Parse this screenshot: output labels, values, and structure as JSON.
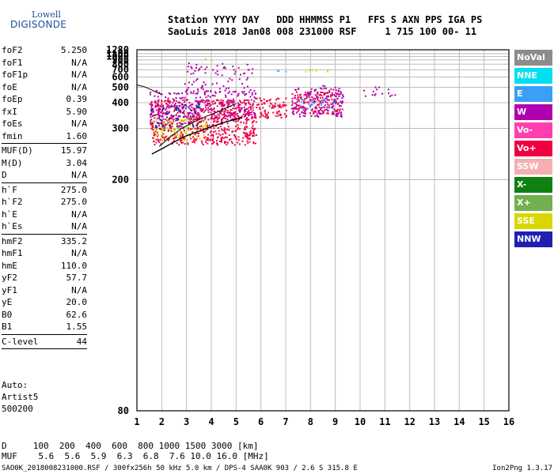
{
  "logo": {
    "line1": "Lowell",
    "line2": "DIGISONDE"
  },
  "header": {
    "labels": "Station YYYY DAY   DDD HHMMSS P1   FFS S AXN PPS IGA PS",
    "values": "SaoLuis 2018 Jan08 008 231000 RSF     1 715 100 00- 11"
  },
  "params": [
    {
      "key": "foF2",
      "value": "5.250"
    },
    {
      "key": "foF1",
      "value": "N/A"
    },
    {
      "key": "foF1p",
      "value": "N/A"
    },
    {
      "key": "foE",
      "value": "N/A"
    },
    {
      "key": "foEp",
      "value": "0.39"
    },
    {
      "key": "fxI",
      "value": "5.90"
    },
    {
      "key": "foEs",
      "value": "N/A"
    },
    {
      "key": "fmin",
      "value": "1.60",
      "sep_after": true
    },
    {
      "key": "MUF(D)",
      "value": "15.97"
    },
    {
      "key": "M(D)",
      "value": "3.04"
    },
    {
      "key": "D",
      "value": "N/A",
      "sep_after": true
    },
    {
      "key": "h`F",
      "value": "275.0"
    },
    {
      "key": "h`F2",
      "value": "275.0"
    },
    {
      "key": "h`E",
      "value": "N/A"
    },
    {
      "key": "h`Es",
      "value": "N/A",
      "sep_after": true
    },
    {
      "key": "hmF2",
      "value": "335.2"
    },
    {
      "key": "hmF1",
      "value": "N/A"
    },
    {
      "key": "hmE",
      "value": "110.0"
    },
    {
      "key": "yF2",
      "value": "57.7"
    },
    {
      "key": "yF1",
      "value": "N/A"
    },
    {
      "key": "yE",
      "value": "20.0"
    },
    {
      "key": "B0",
      "value": "62.6"
    },
    {
      "key": "B1",
      "value": "1.55",
      "sep_after": true
    },
    {
      "key": "C-level",
      "value": "44",
      "sep_after": true
    }
  ],
  "auto": {
    "line1": "Auto:",
    "line2": "Artist5",
    "line3": "500200"
  },
  "legend": [
    {
      "label": "NoVal",
      "color": "#8c8c8c"
    },
    {
      "label": "NNE",
      "color": "#00e0f0"
    },
    {
      "label": "E",
      "color": "#3aa0f5"
    },
    {
      "label": "W",
      "color": "#b000b0"
    },
    {
      "label": "Vo-",
      "color": "#ff3fb0"
    },
    {
      "label": "Vo+",
      "color": "#f00040"
    },
    {
      "label": "SSW",
      "color": "#f4b0b0"
    },
    {
      "label": "X-",
      "color": "#108010"
    },
    {
      "label": "X+",
      "color": "#70b050"
    },
    {
      "label": "SSE",
      "color": "#d8d800"
    },
    {
      "label": "NNW",
      "color": "#2020b0"
    }
  ],
  "d_table": {
    "row1": "D     100  200  400  600  800 1000 1500 3000 [km]",
    "row2": "MUF    5.6  5.6  5.9  6.3  6.8  7.6 10.0 16.0 [MHz]"
  },
  "footer": {
    "left": "SAO0K_2018008231000.RSF / 300fx256h 50 kHz 5.0 km / DPS-4 SAA0K 903 / 2.6 S 315.8 E",
    "right": "Ion2Png 1.3.17"
  },
  "chart_data": {
    "type": "scatter",
    "xlim": [
      1,
      16
    ],
    "ylim": [
      80,
      1280
    ],
    "x_ticks": [
      "1",
      "2",
      "3",
      "4",
      "5",
      "6",
      "7",
      "8",
      "9",
      "10",
      "11",
      "12",
      "13",
      "14",
      "15",
      "16"
    ],
    "y_ticks": [
      "80",
      "200",
      "300",
      "400",
      "500",
      "600",
      "700",
      "800",
      "900",
      "1000",
      "1100",
      "1280"
    ],
    "y_scale": "reciprocal",
    "grid": true,
    "clusters": [
      {
        "name": "Vo+",
        "x": [
          1.5,
          5.8
        ],
        "y": [
          260,
          420
        ],
        "density": 0.9
      },
      {
        "name": "Vo+",
        "x": [
          5.8,
          7.0
        ],
        "y": [
          330,
          430
        ],
        "density": 0.8
      },
      {
        "name": "Vo+",
        "x": [
          7.2,
          9.2
        ],
        "y": [
          350,
          470
        ],
        "density": 0.8
      },
      {
        "name": "W",
        "x": [
          1.5,
          5.8
        ],
        "y": [
          330,
          480
        ],
        "density": 0.5
      },
      {
        "name": "W",
        "x": [
          7.2,
          9.3
        ],
        "y": [
          340,
          520
        ],
        "density": 0.6
      },
      {
        "name": "NNW",
        "x": [
          1.5,
          3.5
        ],
        "y": [
          300,
          400
        ],
        "density": 0.4
      },
      {
        "name": "SSE",
        "x": [
          1.6,
          3.8
        ],
        "y": [
          270,
          330
        ],
        "density": 0.5
      },
      {
        "name": "W",
        "x": [
          2.9,
          5.7
        ],
        "y": [
          450,
          850
        ],
        "density": 0.25
      },
      {
        "name": "SSE",
        "x": [
          3.6,
          4.4
        ],
        "y": [
          880,
          970
        ],
        "density": 0.15
      },
      {
        "name": "NNE",
        "x": [
          6.6,
          7.0
        ],
        "y": [
          660,
          710
        ],
        "density": 0.6
      },
      {
        "name": "SSE",
        "x": [
          7.7,
          9.3
        ],
        "y": [
          680,
          710
        ],
        "density": 0.5
      },
      {
        "name": "W",
        "x": [
          9.8,
          11.8
        ],
        "y": [
          440,
          510
        ],
        "density": 0.2
      },
      {
        "name": "E",
        "x": [
          7.5,
          9.0
        ],
        "y": [
          370,
          430
        ],
        "density": 0.3
      }
    ],
    "trace": {
      "x": [
        1.6,
        2.0,
        2.5,
        3.0,
        3.5,
        4.0,
        4.5,
        5.0,
        5.25
      ],
      "y": [
        240,
        250,
        265,
        280,
        292,
        305,
        318,
        330,
        335
      ]
    },
    "trace2": {
      "x": [
        1.9,
        2.3,
        2.8,
        3.3,
        3.8,
        4.2,
        4.7,
        5.0
      ],
      "y": [
        255,
        275,
        300,
        320,
        340,
        355,
        380,
        395
      ]
    },
    "profile": {
      "x": [
        1.0,
        1.3,
        1.6,
        1.8,
        2.0
      ],
      "y": [
        520,
        505,
        480,
        460,
        450
      ]
    }
  }
}
